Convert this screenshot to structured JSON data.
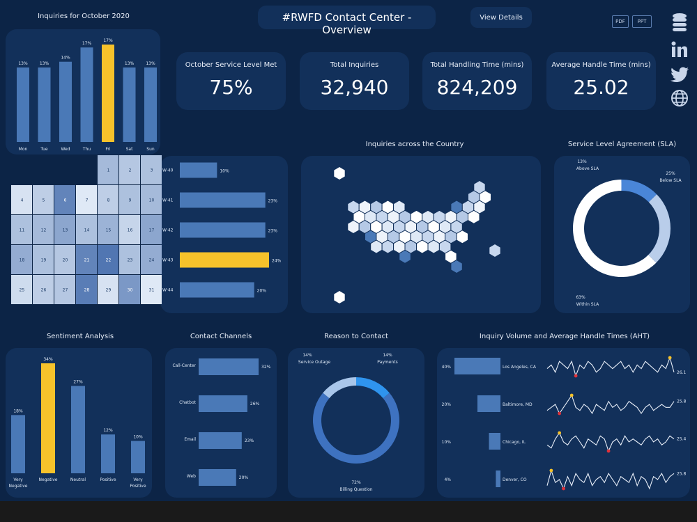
{
  "header": {
    "title": "#RWFD Contact Center - Overview",
    "view_details": "View Details",
    "pdf": "PDF",
    "ppt": "PPT"
  },
  "social_icons": [
    "database-icon",
    "linkedin-icon",
    "twitter-icon",
    "globe-icon"
  ],
  "colors": {
    "bg": "#0c2446",
    "card": "#12305a",
    "bar": "#4a79b7",
    "highlight": "#f6c22b",
    "light": "#dfe9f6"
  },
  "kpis": [
    {
      "label": "October Service Level Met",
      "value": "75%"
    },
    {
      "label": "Total Inquiries",
      "value": "32,940"
    },
    {
      "label": "Total Handling Time (mins)",
      "value": "824,209"
    },
    {
      "label": "Average Handle Time (mins)",
      "value": "25.02"
    }
  ],
  "chart_data": [
    {
      "id": "weekday",
      "type": "bar",
      "title": "Inquiries for October 2020",
      "categories": [
        "Mon",
        "Tue",
        "Wed",
        "Thu",
        "Fri",
        "Sat",
        "Sun"
      ],
      "values": [
        13,
        13,
        14,
        17,
        17,
        13,
        13
      ],
      "data_labels": [
        "13%",
        "13%",
        "14%",
        "17%",
        "17%",
        "13%",
        "13%"
      ],
      "highlight": "Fri",
      "ylim": [
        0,
        17
      ]
    },
    {
      "id": "calendar",
      "type": "heatmap",
      "title": "",
      "weeks": [
        {
          "label": "W-40",
          "days": [
            "",
            "",
            "",
            "",
            "1",
            "2",
            "3"
          ],
          "levels": [
            0,
            0,
            0,
            0,
            0.35,
            0.25,
            0.3
          ]
        },
        {
          "label": "W-41",
          "days": [
            "4",
            "5",
            "6",
            "7",
            "8",
            "9",
            "10"
          ],
          "levels": [
            0.05,
            0.2,
            0.75,
            0.0,
            0.2,
            0.3,
            0.35
          ]
        },
        {
          "label": "W-42",
          "days": [
            "11",
            "12",
            "13",
            "14",
            "15",
            "16",
            "17"
          ],
          "levels": [
            0.3,
            0.35,
            0.5,
            0.3,
            0.4,
            0.15,
            0.5
          ]
        },
        {
          "label": "W-43",
          "days": [
            "18",
            "19",
            "20",
            "21",
            "22",
            "23",
            "24"
          ],
          "levels": [
            0.45,
            0.3,
            0.25,
            0.75,
            0.85,
            0.3,
            0.45
          ]
        },
        {
          "label": "W-44",
          "days": [
            "25",
            "26",
            "27",
            "28",
            "29",
            "30",
            "31"
          ],
          "levels": [
            0.1,
            0.2,
            0.25,
            0.8,
            0.05,
            0.6,
            0
          ]
        }
      ]
    },
    {
      "id": "weekly",
      "type": "bar",
      "title": "",
      "categories": [
        "W-40",
        "W-41",
        "W-42",
        "W-43",
        "W-44"
      ],
      "values": [
        10,
        23,
        23,
        24,
        20
      ],
      "data_labels": [
        "10%",
        "23%",
        "23%",
        "24%",
        "20%"
      ],
      "highlight": "W-43",
      "xlim": [
        0,
        24
      ]
    },
    {
      "id": "map",
      "type": "heatmap",
      "title": "Inquiries across the Country"
    },
    {
      "id": "sla",
      "type": "pie",
      "title": "Service Level Agreement (SLA)",
      "slices": [
        {
          "name": "Within SLA",
          "value": 63,
          "label": "63%"
        },
        {
          "name": "Above SLA",
          "value": 13,
          "label": "13%"
        },
        {
          "name": "Below SLA",
          "value": 25,
          "label": "25%"
        }
      ]
    },
    {
      "id": "sentiment",
      "type": "bar",
      "title": "Sentiment Analysis",
      "categories": [
        "Very Negative",
        "Negative",
        "Neutral",
        "Positive",
        "Very Positive"
      ],
      "values": [
        18,
        34,
        27,
        12,
        10
      ],
      "data_labels": [
        "18%",
        "34%",
        "27%",
        "12%",
        "10%"
      ],
      "highlight": "Negative",
      "ylim": [
        0,
        34
      ]
    },
    {
      "id": "channels",
      "type": "bar",
      "title": "Contact Channels",
      "categories": [
        "Call-Center",
        "Chatbot",
        "Email",
        "Web"
      ],
      "values": [
        32,
        26,
        23,
        20
      ],
      "data_labels": [
        "32%",
        "26%",
        "23%",
        "20%"
      ],
      "xlim": [
        0,
        32
      ]
    },
    {
      "id": "reason",
      "type": "pie",
      "title": "Reason to Contact",
      "slices": [
        {
          "name": "Billing Question",
          "value": 72,
          "label": "72%"
        },
        {
          "name": "Service Outage",
          "value": 14,
          "label": "14%"
        },
        {
          "name": "Payments",
          "value": 14,
          "label": "14%"
        }
      ]
    },
    {
      "id": "volume",
      "type": "line",
      "title": "Inquiry Volume and Average Handle Times (AHT)",
      "cities": [
        {
          "name": "Los Angeles, CA",
          "share": 40,
          "share_label": "40%",
          "aht": "26.1",
          "series": [
            24,
            25,
            23,
            26,
            25,
            24,
            26,
            22,
            25,
            24,
            26,
            25,
            23,
            24,
            26,
            25,
            24,
            25,
            26,
            24,
            25,
            23,
            25,
            24,
            26,
            25,
            24,
            23,
            25,
            24,
            27,
            23
          ]
        },
        {
          "name": "Baltimore, MD",
          "share": 20,
          "share_label": "20%",
          "aht": "25.8",
          "series": [
            23,
            24,
            25,
            22,
            24,
            26,
            28,
            24,
            23,
            25,
            24,
            22,
            25,
            24,
            23,
            26,
            24,
            25,
            23,
            24,
            26,
            25,
            24,
            22,
            24,
            25,
            23,
            24,
            25,
            24,
            24,
            26
          ]
        },
        {
          "name": "Chicago, IL",
          "share": 10,
          "share_label": "10%",
          "aht": "25.4",
          "series": [
            23,
            22,
            25,
            27,
            24,
            23,
            25,
            26,
            24,
            22,
            25,
            24,
            23,
            26,
            25,
            21,
            24,
            25,
            23,
            26,
            24,
            25,
            24,
            23,
            25,
            26,
            24,
            25,
            23,
            24,
            26,
            25
          ]
        },
        {
          "name": "Denver, CO",
          "share": 4,
          "share_label": "4%",
          "aht": "25.8",
          "series": [
            22,
            27,
            23,
            24,
            21,
            25,
            22,
            26,
            24,
            23,
            26,
            22,
            24,
            25,
            23,
            26,
            24,
            22,
            25,
            24,
            23,
            26,
            22,
            25,
            24,
            21,
            25,
            24,
            26,
            23,
            25,
            26
          ]
        }
      ]
    }
  ]
}
